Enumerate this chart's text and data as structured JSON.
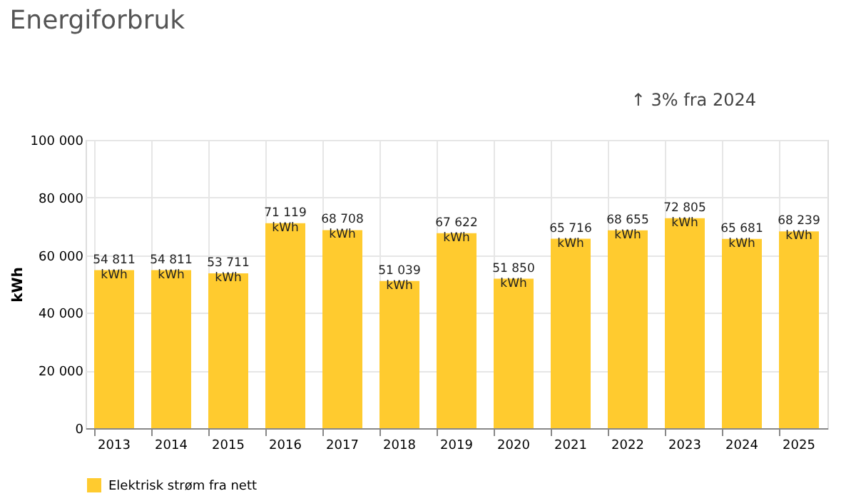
{
  "chart_data": {
    "type": "bar",
    "title": "Energiforbruk",
    "ylabel": "kWh",
    "annotations": [
      "↑ 3% fra 2024"
    ],
    "categories": [
      "2013",
      "2014",
      "2015",
      "2016",
      "2017",
      "2018",
      "2019",
      "2020",
      "2021",
      "2022",
      "2023",
      "2024",
      "2025"
    ],
    "series": [
      {
        "name": "Elektrisk strøm fra nett",
        "color": "#ffcb2f",
        "values": [
          54811,
          54811,
          53711,
          71119,
          68708,
          51039,
          67622,
          51850,
          65716,
          68655,
          72805,
          65681,
          68239
        ],
        "value_labels": [
          "54 811 kWh",
          "54 811 kWh",
          "53 711 kWh",
          "71 119 kWh",
          "68 708 kWh",
          "51 039 kWh",
          "67 622 kWh",
          "51 850 kWh",
          "65 716 kWh",
          "68 655 kWh",
          "72 805 kWh",
          "65 681 kWh",
          "68 239 kWh"
        ]
      }
    ],
    "ylim": [
      0,
      100000
    ],
    "yticks": [
      {
        "value": 0,
        "label": "0"
      },
      {
        "value": 20000,
        "label": "20 000"
      },
      {
        "value": 40000,
        "label": "40 000"
      },
      {
        "value": 60000,
        "label": "60 000"
      },
      {
        "value": 80000,
        "label": "80 000"
      },
      {
        "value": 100000,
        "label": "100 000"
      }
    ],
    "grid": true,
    "legend": "bottom left"
  }
}
